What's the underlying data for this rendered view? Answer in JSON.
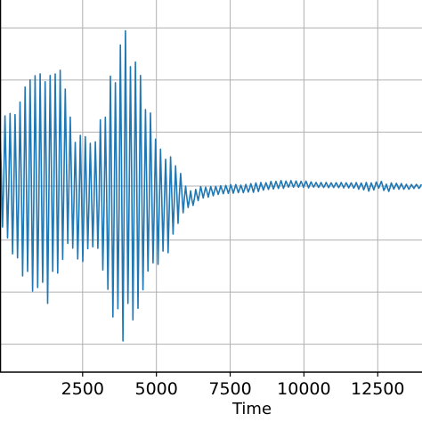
{
  "chart_data": {
    "type": "line",
    "xlabel": "Time",
    "ylabel": "",
    "title": "",
    "grid": true,
    "xlim": [
      -300,
      14000
    ],
    "ylim": [
      -1.0,
      1.0
    ],
    "xticks": [
      2500,
      5000,
      7500,
      10000,
      12500
    ],
    "xtick_labels": [
      "2500",
      "5000",
      "7500",
      "10000",
      "12500"
    ],
    "ygrid": [
      -0.85,
      -0.57,
      -0.29,
      0.0,
      0.29,
      0.57,
      0.85
    ],
    "colors": {
      "line": "#1f77b4",
      "grid": "#b0b0b0",
      "axes": "#000000"
    },
    "series": [
      {
        "x": [
          -300,
          0,
          200,
          400,
          600,
          800,
          1000,
          1200,
          1400,
          1600,
          1800,
          2000,
          2200,
          2400,
          2600,
          2800,
          3000,
          3200,
          3400,
          3600,
          3800,
          4000,
          4200,
          4400,
          4600,
          4800,
          5000,
          5200,
          5400,
          5600,
          5800,
          6000,
          6200,
          6500,
          7000,
          7500,
          8000,
          8500,
          9000,
          9500,
          10000,
          10500,
          11000,
          11500,
          12000,
          12200,
          12400,
          12600,
          12800,
          13000,
          13200,
          13400,
          13600,
          13800,
          14000
        ],
        "envelope_top": [
          0.38,
          0.42,
          0.4,
          0.5,
          0.56,
          0.6,
          0.62,
          0.66,
          0.64,
          0.68,
          0.62,
          0.52,
          0.3,
          0.28,
          0.3,
          0.22,
          0.3,
          0.46,
          0.58,
          0.65,
          0.8,
          0.92,
          0.78,
          0.64,
          0.56,
          0.44,
          0.32,
          0.24,
          0.2,
          0.18,
          0.08,
          0.0,
          -0.03,
          0.0,
          0.0,
          0.01,
          0.01,
          0.02,
          0.03,
          0.03,
          0.03,
          0.02,
          0.02,
          0.02,
          0.02,
          0.02,
          0.02,
          0.03,
          0.01,
          0.02,
          0.02,
          0.01,
          0.01,
          0.01,
          0.01
        ],
        "envelope_bottom": [
          -0.25,
          -0.36,
          -0.42,
          -0.5,
          -0.58,
          -0.62,
          -0.65,
          -0.66,
          -0.63,
          -0.58,
          -0.5,
          -0.36,
          -0.4,
          -0.44,
          -0.4,
          -0.34,
          -0.38,
          -0.58,
          -0.72,
          -0.8,
          -0.86,
          -0.86,
          -0.8,
          -0.7,
          -0.64,
          -0.56,
          -0.48,
          -0.42,
          -0.38,
          -0.3,
          -0.16,
          -0.13,
          -0.12,
          -0.07,
          -0.05,
          -0.04,
          -0.04,
          -0.03,
          -0.02,
          -0.01,
          -0.01,
          -0.01,
          -0.01,
          -0.01,
          -0.02,
          -0.03,
          -0.02,
          -0.01,
          -0.04,
          -0.02,
          -0.02,
          -0.02,
          -0.02,
          -0.01,
          -0.02
        ],
        "oscillation_period": 170
      }
    ]
  }
}
